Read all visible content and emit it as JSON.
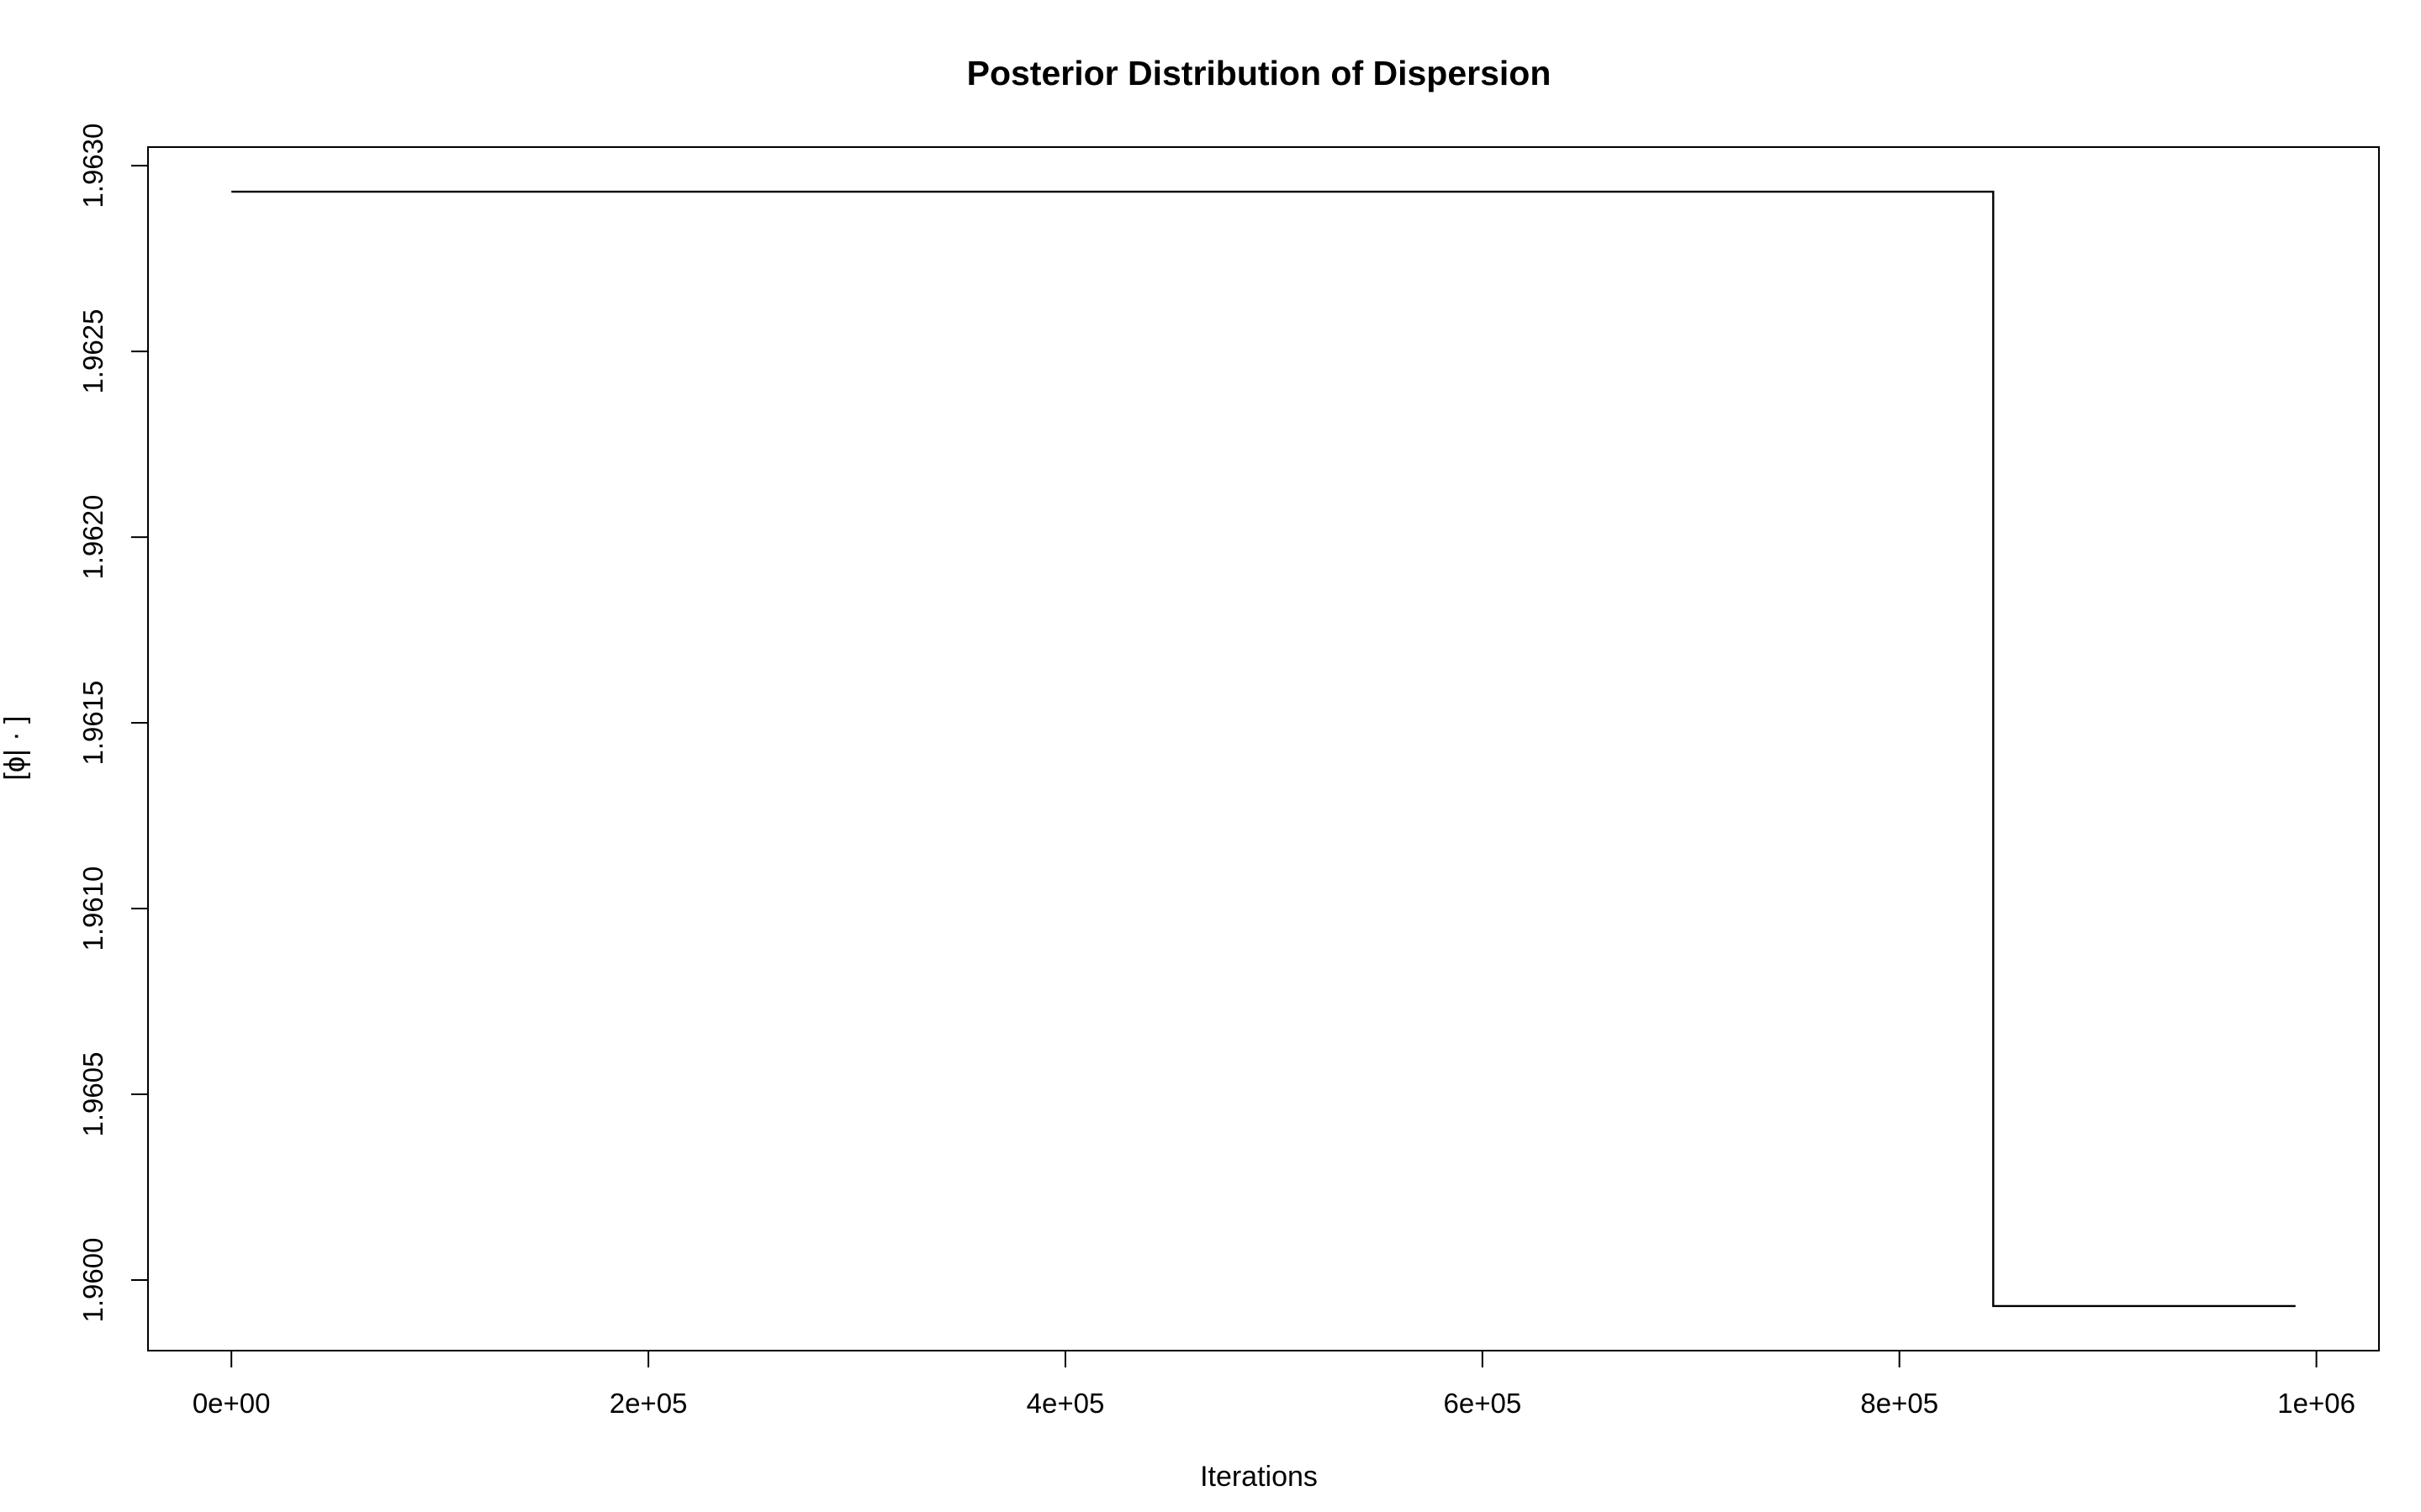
{
  "chart_data": {
    "type": "line",
    "title": "Posterior Distribution of Dispersion",
    "xlabel": "Iterations",
    "ylabel": "[ϕ| · ]",
    "x_ticks": [
      0,
      200000,
      400000,
      600000,
      800000,
      1000000
    ],
    "x_tick_labels": [
      "0e+00",
      "2e+05",
      "4e+05",
      "6e+05",
      "8e+05",
      "1e+06"
    ],
    "y_ticks": [
      1.96,
      1.9605,
      1.961,
      1.9615,
      1.962,
      1.9625,
      1.963
    ],
    "y_tick_labels": [
      "1.9600",
      "1.9605",
      "1.9610",
      "1.9615",
      "1.9620",
      "1.9625",
      "1.9630"
    ],
    "xlim": [
      -40000,
      1030000
    ],
    "ylim": [
      1.95981,
      1.96305
    ],
    "grid": false,
    "line_color": "#000000",
    "series": [
      {
        "x": [
          1,
          845000,
          845000,
          990000
        ],
        "y": [
          1.96293,
          1.96293,
          1.95993,
          1.95993
        ]
      }
    ]
  }
}
